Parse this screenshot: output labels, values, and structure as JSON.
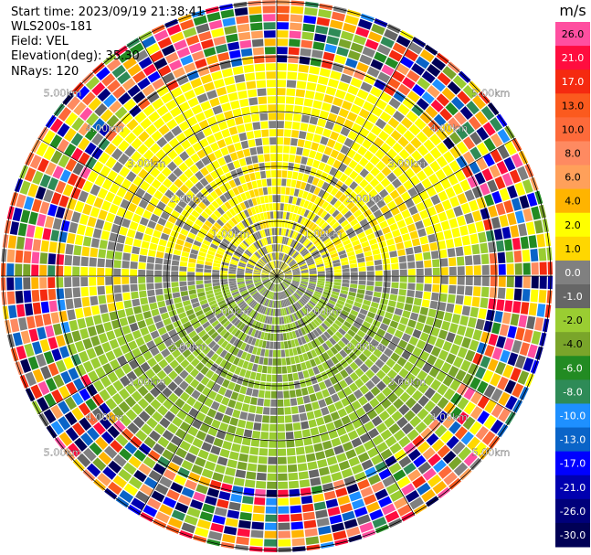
{
  "header": {
    "start_time": "Start time: 2023/09/19 21:38:41",
    "instrument": "WLS200s-181",
    "field": "Field: VEL",
    "elevation": "Elevation(deg): 35.30",
    "nrays": "NRays: 120"
  },
  "chart_data": {
    "type": "heatmap",
    "projection": "polar-ppi",
    "n_rays": 120,
    "range_rings_km": [
      1,
      2,
      3,
      4,
      5
    ],
    "range_ring_labels": [
      "1.00km",
      "2.00km",
      "3.00km",
      "4.00km",
      "5.00km"
    ],
    "colorbar": {
      "unit": "m/s",
      "tick_labels": [
        "26.0",
        "21.0",
        "17.0",
        "13.0",
        "10.0",
        "8.0",
        "6.0",
        "4.0",
        "2.0",
        "1.0",
        "0.0",
        "-1.0",
        "-2.0",
        "-4.0",
        "-6.0",
        "-8.0",
        "-10.0",
        "-13.0",
        "-17.0",
        "-21.0",
        "-26.0",
        "-30.0"
      ],
      "colors": [
        "#ff4fa0",
        "#ff0d3f",
        "#f52a10",
        "#fb5a1e",
        "#fd6a3a",
        "#fe8a61",
        "#ffa05a",
        "#ffb400",
        "#ffff00",
        "#ffd700",
        "#808080",
        "#666666",
        "#9acd32",
        "#7aa52a",
        "#228b22",
        "#2e8b57",
        "#1e90ff",
        "#0a64c8",
        "#0000ff",
        "#0000b0",
        "#00007a",
        "#000055"
      ]
    },
    "pattern": {
      "positive_sector": "north (yellow/gold)",
      "negative_sector": "south (green)",
      "outer_ranges": "noisy mixed colors"
    }
  }
}
